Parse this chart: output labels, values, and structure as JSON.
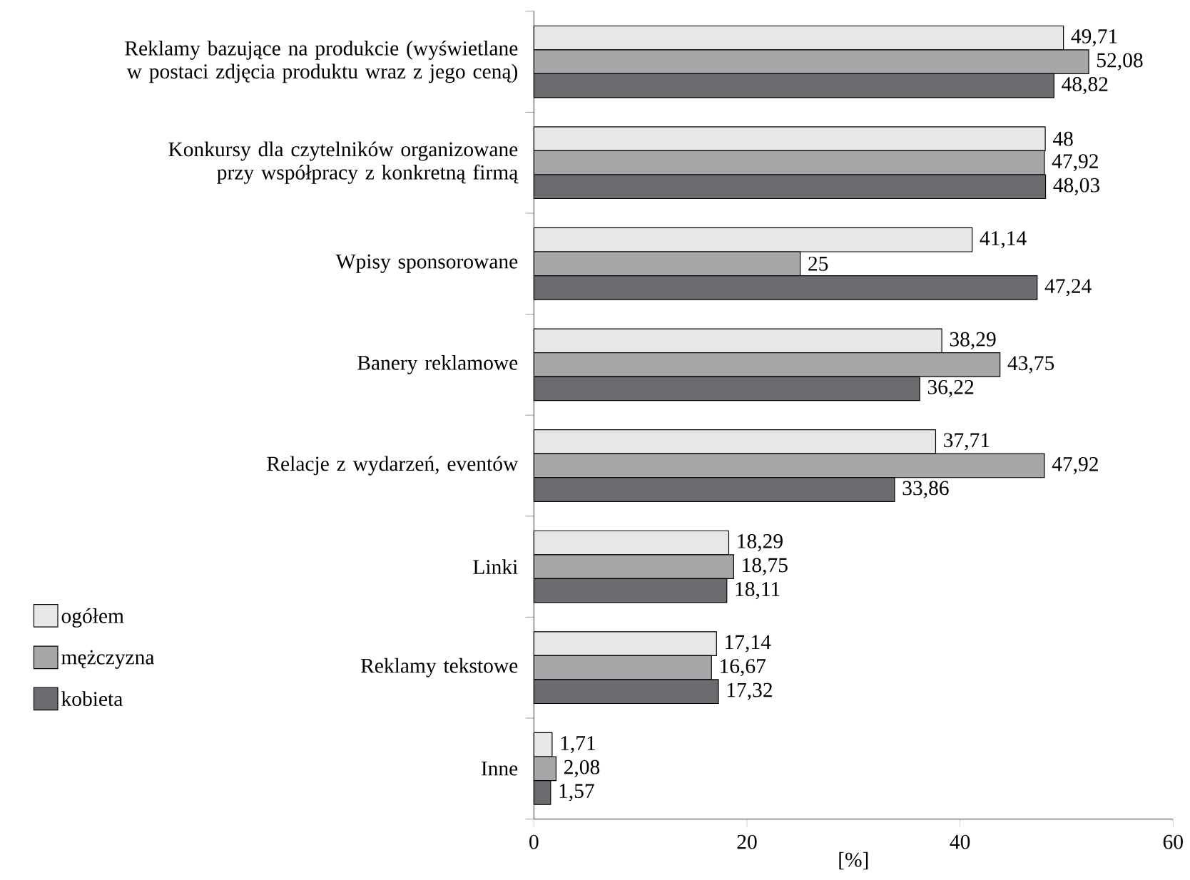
{
  "chart_data": {
    "type": "bar",
    "orientation": "horizontal",
    "categories": [
      "Reklamy bazujące na produkcie (wyświetlane w postaci zdjęcia produktu wraz z jego ceną)",
      "Konkursy dla czytelników organizowane przy współpracy z konkretną firmą",
      "Wpisy sponsorowane",
      "Banery reklamowe",
      "Relacje z wydarzeń, eventów",
      "Linki",
      "Reklamy tekstowe",
      "Inne"
    ],
    "series": [
      {
        "name": "ogółem",
        "color": "#e6e7e9",
        "values": [
          49.71,
          48,
          41.14,
          38.29,
          37.71,
          18.29,
          17.14,
          1.71
        ],
        "value_labels": [
          "49,71",
          "48",
          "41,14",
          "38,29",
          "37,71",
          "18,29",
          "17,14",
          "1,71"
        ]
      },
      {
        "name": "mężczyzna",
        "color": "#a6a7a9",
        "values": [
          52.08,
          47.92,
          25,
          43.75,
          47.92,
          18.75,
          16.67,
          2.08
        ],
        "value_labels": [
          "52,08",
          "47,92",
          "25",
          "43,75",
          "47,92",
          "18,75",
          "16,67",
          "2,08"
        ]
      },
      {
        "name": "kobieta",
        "color": "#6b6c70",
        "values": [
          48.82,
          48.03,
          47.24,
          36.22,
          33.86,
          18.11,
          17.32,
          1.57
        ],
        "value_labels": [
          "48,82",
          "48,03",
          "47,24",
          "36,22",
          "33,86",
          "18,11",
          "17,32",
          "1,57"
        ]
      }
    ],
    "xlabel": "[%]",
    "xlim": [
      0,
      60
    ],
    "xticks": [
      0,
      20,
      40,
      60
    ],
    "legend": "left"
  }
}
